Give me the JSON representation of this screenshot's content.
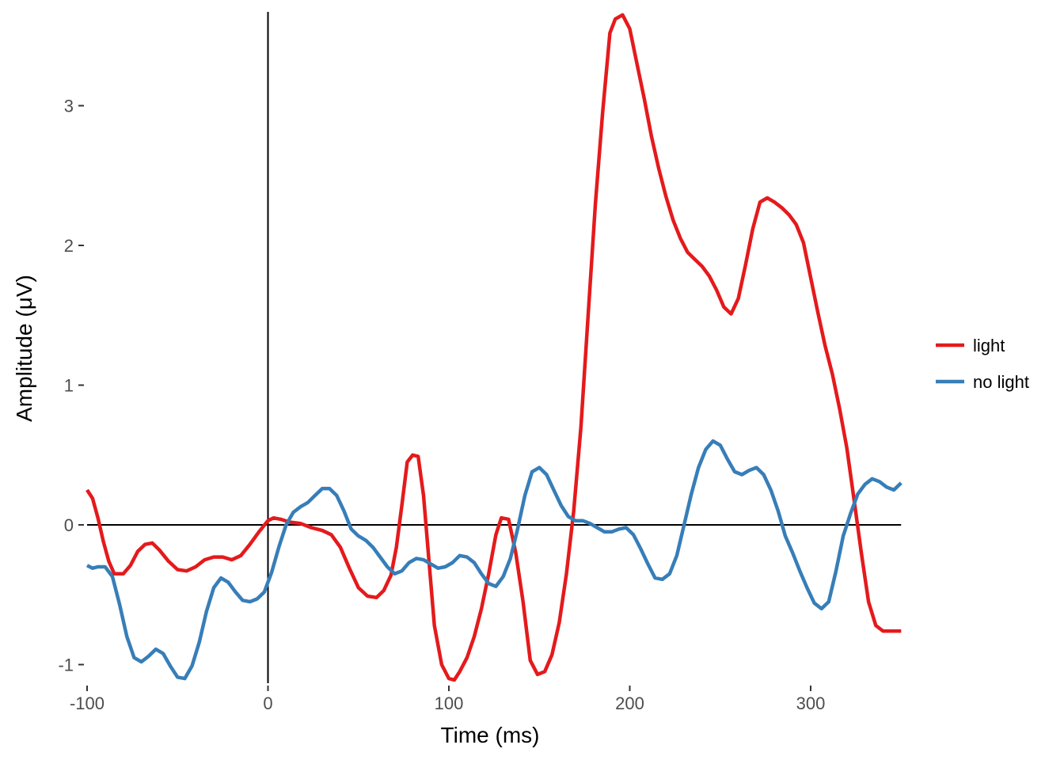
{
  "chart_data": {
    "type": "line",
    "xlabel": "Time (ms)",
    "ylabel": "Amplitude (μV)",
    "xlim": [
      -100,
      350
    ],
    "ylim": [
      -1.1,
      3.65
    ],
    "x_ticks": [
      -100,
      0,
      100,
      200,
      300
    ],
    "y_ticks": [
      -1,
      0,
      1,
      2,
      3
    ],
    "grid": false,
    "zero_lines": true,
    "legend_position": "right",
    "series": [
      {
        "name": "light",
        "color": "#E41A1C",
        "points": [
          [
            -100,
            0.25
          ],
          [
            -97,
            0.19
          ],
          [
            -94,
            0.05
          ],
          [
            -91,
            -0.12
          ],
          [
            -88,
            -0.26
          ],
          [
            -85,
            -0.35
          ],
          [
            -80,
            -0.35
          ],
          [
            -76,
            -0.29
          ],
          [
            -72,
            -0.19
          ],
          [
            -68,
            -0.14
          ],
          [
            -64,
            -0.13
          ],
          [
            -60,
            -0.18
          ],
          [
            -55,
            -0.26
          ],
          [
            -50,
            -0.32
          ],
          [
            -45,
            -0.33
          ],
          [
            -40,
            -0.3
          ],
          [
            -35,
            -0.25
          ],
          [
            -30,
            -0.23
          ],
          [
            -25,
            -0.23
          ],
          [
            -20,
            -0.25
          ],
          [
            -15,
            -0.22
          ],
          [
            -10,
            -0.14
          ],
          [
            -5,
            -0.05
          ],
          [
            0,
            0.03
          ],
          [
            3,
            0.05
          ],
          [
            7,
            0.04
          ],
          [
            12,
            0.02
          ],
          [
            18,
            0.01
          ],
          [
            24,
            -0.02
          ],
          [
            30,
            -0.04
          ],
          [
            35,
            -0.07
          ],
          [
            40,
            -0.16
          ],
          [
            45,
            -0.31
          ],
          [
            50,
            -0.45
          ],
          [
            55,
            -0.51
          ],
          [
            60,
            -0.52
          ],
          [
            64,
            -0.47
          ],
          [
            68,
            -0.36
          ],
          [
            71,
            -0.16
          ],
          [
            74,
            0.14
          ],
          [
            77,
            0.45
          ],
          [
            80,
            0.5
          ],
          [
            83,
            0.49
          ],
          [
            86,
            0.21
          ],
          [
            89,
            -0.26
          ],
          [
            92,
            -0.72
          ],
          [
            96,
            -1.0
          ],
          [
            100,
            -1.1
          ],
          [
            103,
            -1.11
          ],
          [
            106,
            -1.05
          ],
          [
            110,
            -0.95
          ],
          [
            114,
            -0.8
          ],
          [
            118,
            -0.6
          ],
          [
            122,
            -0.35
          ],
          [
            126,
            -0.07
          ],
          [
            129,
            0.05
          ],
          [
            133,
            0.04
          ],
          [
            137,
            -0.2
          ],
          [
            141,
            -0.55
          ],
          [
            145,
            -0.97
          ],
          [
            149,
            -1.07
          ],
          [
            153,
            -1.05
          ],
          [
            157,
            -0.93
          ],
          [
            161,
            -0.7
          ],
          [
            165,
            -0.35
          ],
          [
            169,
            0.1
          ],
          [
            173,
            0.7
          ],
          [
            177,
            1.5
          ],
          [
            181,
            2.3
          ],
          [
            185,
            2.95
          ],
          [
            189,
            3.52
          ],
          [
            192,
            3.62
          ],
          [
            196,
            3.65
          ],
          [
            200,
            3.55
          ],
          [
            204,
            3.3
          ],
          [
            208,
            3.05
          ],
          [
            212,
            2.78
          ],
          [
            216,
            2.55
          ],
          [
            220,
            2.35
          ],
          [
            224,
            2.18
          ],
          [
            228,
            2.05
          ],
          [
            232,
            1.95
          ],
          [
            236,
            1.9
          ],
          [
            240,
            1.85
          ],
          [
            244,
            1.78
          ],
          [
            248,
            1.68
          ],
          [
            252,
            1.56
          ],
          [
            256,
            1.51
          ],
          [
            260,
            1.62
          ],
          [
            264,
            1.86
          ],
          [
            268,
            2.12
          ],
          [
            272,
            2.31
          ],
          [
            276,
            2.34
          ],
          [
            280,
            2.31
          ],
          [
            284,
            2.27
          ],
          [
            288,
            2.22
          ],
          [
            292,
            2.15
          ],
          [
            296,
            2.02
          ],
          [
            300,
            1.77
          ],
          [
            304,
            1.52
          ],
          [
            308,
            1.28
          ],
          [
            312,
            1.08
          ],
          [
            316,
            0.83
          ],
          [
            320,
            0.55
          ],
          [
            324,
            0.18
          ],
          [
            328,
            -0.2
          ],
          [
            332,
            -0.55
          ],
          [
            336,
            -0.72
          ],
          [
            340,
            -0.76
          ],
          [
            345,
            -0.76
          ],
          [
            350,
            -0.76
          ]
        ]
      },
      {
        "name": "no light",
        "color": "#377EB8",
        "points": [
          [
            -100,
            -0.29
          ],
          [
            -97,
            -0.31
          ],
          [
            -94,
            -0.3
          ],
          [
            -90,
            -0.3
          ],
          [
            -86,
            -0.37
          ],
          [
            -82,
            -0.57
          ],
          [
            -78,
            -0.8
          ],
          [
            -74,
            -0.95
          ],
          [
            -70,
            -0.98
          ],
          [
            -66,
            -0.94
          ],
          [
            -62,
            -0.89
          ],
          [
            -58,
            -0.92
          ],
          [
            -54,
            -1.01
          ],
          [
            -50,
            -1.09
          ],
          [
            -46,
            -1.1
          ],
          [
            -42,
            -1.01
          ],
          [
            -38,
            -0.84
          ],
          [
            -34,
            -0.62
          ],
          [
            -30,
            -0.45
          ],
          [
            -26,
            -0.38
          ],
          [
            -22,
            -0.41
          ],
          [
            -18,
            -0.48
          ],
          [
            -14,
            -0.54
          ],
          [
            -10,
            -0.55
          ],
          [
            -6,
            -0.53
          ],
          [
            -2,
            -0.48
          ],
          [
            2,
            -0.34
          ],
          [
            6,
            -0.16
          ],
          [
            10,
            0.0
          ],
          [
            14,
            0.09
          ],
          [
            18,
            0.13
          ],
          [
            22,
            0.16
          ],
          [
            26,
            0.21
          ],
          [
            30,
            0.26
          ],
          [
            34,
            0.26
          ],
          [
            38,
            0.21
          ],
          [
            42,
            0.1
          ],
          [
            46,
            -0.03
          ],
          [
            50,
            -0.08
          ],
          [
            54,
            -0.11
          ],
          [
            58,
            -0.16
          ],
          [
            62,
            -0.23
          ],
          [
            66,
            -0.3
          ],
          [
            70,
            -0.35
          ],
          [
            74,
            -0.33
          ],
          [
            78,
            -0.27
          ],
          [
            82,
            -0.24
          ],
          [
            86,
            -0.25
          ],
          [
            90,
            -0.28
          ],
          [
            94,
            -0.31
          ],
          [
            98,
            -0.3
          ],
          [
            102,
            -0.27
          ],
          [
            106,
            -0.22
          ],
          [
            110,
            -0.23
          ],
          [
            114,
            -0.27
          ],
          [
            118,
            -0.35
          ],
          [
            122,
            -0.42
          ],
          [
            126,
            -0.44
          ],
          [
            130,
            -0.37
          ],
          [
            134,
            -0.24
          ],
          [
            138,
            -0.03
          ],
          [
            142,
            0.21
          ],
          [
            146,
            0.38
          ],
          [
            150,
            0.41
          ],
          [
            154,
            0.36
          ],
          [
            158,
            0.25
          ],
          [
            162,
            0.14
          ],
          [
            166,
            0.06
          ],
          [
            170,
            0.03
          ],
          [
            174,
            0.03
          ],
          [
            178,
            0.01
          ],
          [
            182,
            -0.02
          ],
          [
            186,
            -0.05
          ],
          [
            190,
            -0.05
          ],
          [
            194,
            -0.03
          ],
          [
            198,
            -0.02
          ],
          [
            202,
            -0.07
          ],
          [
            206,
            -0.17
          ],
          [
            210,
            -0.28
          ],
          [
            214,
            -0.38
          ],
          [
            218,
            -0.39
          ],
          [
            222,
            -0.35
          ],
          [
            226,
            -0.22
          ],
          [
            230,
            0.0
          ],
          [
            234,
            0.22
          ],
          [
            238,
            0.41
          ],
          [
            242,
            0.54
          ],
          [
            246,
            0.6
          ],
          [
            250,
            0.57
          ],
          [
            254,
            0.47
          ],
          [
            258,
            0.38
          ],
          [
            262,
            0.36
          ],
          [
            266,
            0.39
          ],
          [
            270,
            0.41
          ],
          [
            274,
            0.36
          ],
          [
            278,
            0.25
          ],
          [
            282,
            0.1
          ],
          [
            286,
            -0.08
          ],
          [
            290,
            -0.2
          ],
          [
            294,
            -0.33
          ],
          [
            298,
            -0.45
          ],
          [
            302,
            -0.56
          ],
          [
            306,
            -0.6
          ],
          [
            310,
            -0.55
          ],
          [
            314,
            -0.33
          ],
          [
            318,
            -0.08
          ],
          [
            322,
            0.08
          ],
          [
            326,
            0.22
          ],
          [
            330,
            0.29
          ],
          [
            334,
            0.33
          ],
          [
            338,
            0.31
          ],
          [
            342,
            0.27
          ],
          [
            346,
            0.25
          ],
          [
            350,
            0.3
          ]
        ]
      }
    ]
  }
}
